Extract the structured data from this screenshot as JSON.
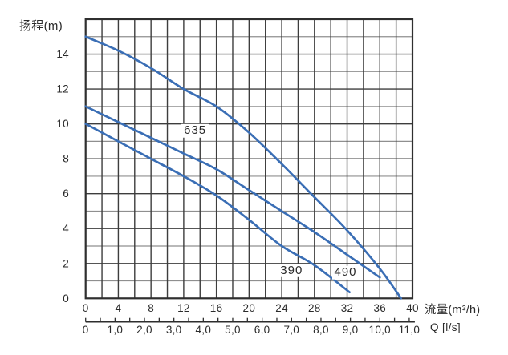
{
  "chart_data": {
    "type": "line",
    "title": "",
    "ylabel": "扬程(m)",
    "xlabel": "流量(m³/h)",
    "x2label": "Q [l/s]",
    "xlim": [
      0,
      40
    ],
    "ylim": [
      0,
      16
    ],
    "x_grid_step": 2,
    "y_grid_step": 1,
    "grid": true,
    "legend_position": "none",
    "x_ticks": [
      {
        "v": 0,
        "label": "0"
      },
      {
        "v": 4,
        "label": "4"
      },
      {
        "v": 8,
        "label": "8"
      },
      {
        "v": 12,
        "label": "12"
      },
      {
        "v": 16,
        "label": "16"
      },
      {
        "v": 20,
        "label": "20"
      },
      {
        "v": 24,
        "label": "24"
      },
      {
        "v": 28,
        "label": "28"
      },
      {
        "v": 32,
        "label": "32"
      },
      {
        "v": 36,
        "label": "36"
      },
      {
        "v": 40,
        "label": "40"
      }
    ],
    "y_ticks": [
      {
        "v": 0,
        "label": "0"
      },
      {
        "v": 2,
        "label": "2"
      },
      {
        "v": 4,
        "label": "4"
      },
      {
        "v": 6,
        "label": "6"
      },
      {
        "v": 8,
        "label": "8"
      },
      {
        "v": 10,
        "label": "10"
      },
      {
        "v": 12,
        "label": "12"
      },
      {
        "v": 14,
        "label": "14"
      }
    ],
    "x2_unit_in_x": 3.6,
    "x2_minor_step": 0.5,
    "x2_max_tick": 11.0,
    "x2_ticks": [
      {
        "v": 0,
        "label": "0"
      },
      {
        "v": 1,
        "label": "1,0"
      },
      {
        "v": 2,
        "label": "2,0"
      },
      {
        "v": 3,
        "label": "3,0"
      },
      {
        "v": 4,
        "label": "4,0"
      },
      {
        "v": 5,
        "label": "5,0"
      },
      {
        "v": 6,
        "label": "6,0"
      },
      {
        "v": 7,
        "label": "7,0"
      },
      {
        "v": 8,
        "label": "8,0"
      },
      {
        "v": 9,
        "label": "9,0"
      },
      {
        "v": 10,
        "label": "10,0"
      },
      {
        "v": 11,
        "label": "11,0"
      }
    ],
    "series": [
      {
        "name": "635",
        "label_xy": [
          13.4,
          9.6
        ],
        "points": [
          [
            0,
            15
          ],
          [
            4,
            14.2
          ],
          [
            8,
            13.2
          ],
          [
            12,
            12.0
          ],
          [
            16,
            11.0
          ],
          [
            20,
            9.5
          ],
          [
            24,
            7.7
          ],
          [
            28,
            5.8
          ],
          [
            32,
            3.9
          ],
          [
            36,
            1.7
          ],
          [
            38.6,
            0
          ]
        ]
      },
      {
        "name": "490",
        "label_xy": [
          31.8,
          1.48
        ],
        "points": [
          [
            0,
            11
          ],
          [
            4,
            10.1
          ],
          [
            8,
            9.2
          ],
          [
            12,
            8.3
          ],
          [
            16,
            7.4
          ],
          [
            20,
            6.2
          ],
          [
            24,
            5.0
          ],
          [
            28,
            3.8
          ],
          [
            32,
            2.5
          ],
          [
            36,
            1.2
          ]
        ]
      },
      {
        "name": "390",
        "label_xy": [
          25.2,
          1.58
        ],
        "points": [
          [
            0,
            10
          ],
          [
            4,
            9.0
          ],
          [
            8,
            8.0
          ],
          [
            12,
            7.0
          ],
          [
            16,
            5.9
          ],
          [
            20,
            4.5
          ],
          [
            24,
            3.0
          ],
          [
            28,
            1.9
          ],
          [
            32.3,
            0.35
          ]
        ]
      }
    ],
    "colors": {
      "curve": "#3a6eb5",
      "grid_major": "#3d3d3d",
      "grid_minor": "#8f8f8f",
      "border": "#2f2f2f",
      "axis2": "#2d2d2d",
      "text": "#2b2b2b",
      "background": "#ffffff"
    }
  }
}
